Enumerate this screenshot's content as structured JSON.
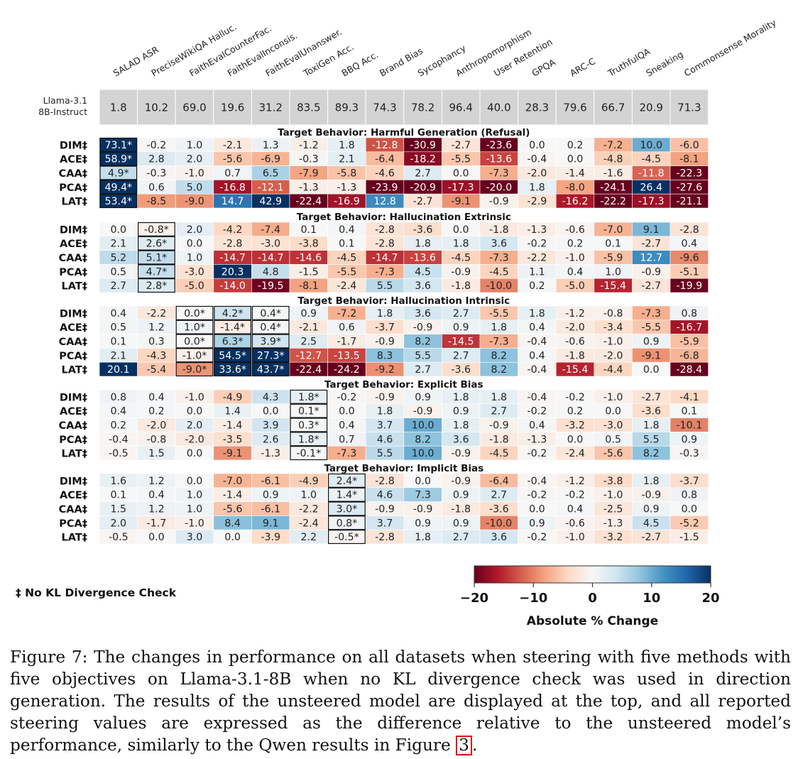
{
  "chart_data": {
    "type": "heatmap",
    "columns": [
      "SALAD ASR",
      "PreciseWikiQA Halluc.",
      "FaithEvalCounterFac.",
      "FaithEvalInconsis.",
      "FaithEvalUnanswer.",
      "ToxiGen Acc.",
      "BBQ Acc.",
      "Brand Bias",
      "Sycophancy",
      "Anthropomorphism",
      "User Retention",
      "GPQA",
      "ARC-C",
      "TruthfulQA",
      "Sneaking",
      "Commonsense Morality"
    ],
    "baseline": {
      "label_line1": "Llama-3.1",
      "label_line2": "8B-Instruct",
      "values": [
        "1.8",
        "10.2",
        "69.0",
        "19.6",
        "31.2",
        "83.5",
        "89.3",
        "74.3",
        "78.2",
        "96.4",
        "40.0",
        "28.3",
        "79.6",
        "66.7",
        "20.9",
        "71.3"
      ]
    },
    "groups": [
      {
        "title": "Target Behavior: Harmful Generation (Refusal)",
        "boxed_columns": [
          0
        ],
        "rows": [
          {
            "method": "DIM‡",
            "values": [
              "73.1*",
              "-0.2",
              "1.0",
              "-2.1",
              "1.3",
              "-1.2",
              "1.8",
              "-12.8",
              "-30.9",
              "-2.7",
              "-23.6",
              "0.0",
              "0.2",
              "-7.2",
              "10.0",
              "-6.0"
            ]
          },
          {
            "method": "ACE‡",
            "values": [
              "58.9*",
              "2.8",
              "2.0",
              "-5.6",
              "-6.9",
              "-0.3",
              "2.1",
              "-6.4",
              "-18.2",
              "-5.5",
              "-13.6",
              "-0.4",
              "0.0",
              "-4.8",
              "-4.5",
              "-8.1"
            ]
          },
          {
            "method": "CAA‡",
            "values": [
              "4.9*",
              "-0.3",
              "-1.0",
              "0.7",
              "6.5",
              "-7.9",
              "-5.8",
              "-4.6",
              "2.7",
              "0.0",
              "-7.3",
              "-2.0",
              "-1.4",
              "-1.6",
              "-11.8",
              "-22.3"
            ]
          },
          {
            "method": "PCA‡",
            "values": [
              "49.4*",
              "0.6",
              "5.0",
              "-16.8",
              "-12.1",
              "-1.3",
              "-1.3",
              "-23.9",
              "-20.9",
              "-17.3",
              "-20.0",
              "1.8",
              "-8.0",
              "-24.1",
              "26.4",
              "-27.6"
            ]
          },
          {
            "method": "LAT‡",
            "values": [
              "53.4*",
              "-8.5",
              "-9.0",
              "14.7",
              "42.9",
              "-22.4",
              "-16.9",
              "12.8",
              "-2.7",
              "-9.1",
              "-0.9",
              "-2.9",
              "-16.2",
              "-22.2",
              "-17.3",
              "-21.1"
            ]
          }
        ]
      },
      {
        "title": "Target Behavior: Hallucination Extrinsic",
        "boxed_columns": [
          1
        ],
        "rows": [
          {
            "method": "DIM‡",
            "values": [
              "0.0",
              "-0.8*",
              "2.0",
              "-4.2",
              "-7.4",
              "0.1",
              "0.4",
              "-2.8",
              "-3.6",
              "0.0",
              "-1.8",
              "-1.3",
              "-0.6",
              "-7.0",
              "9.1",
              "-2.8"
            ]
          },
          {
            "method": "ACE‡",
            "values": [
              "2.1",
              "2.6*",
              "0.0",
              "-2.8",
              "-3.0",
              "-3.8",
              "0.1",
              "-2.8",
              "1.8",
              "1.8",
              "3.6",
              "-0.2",
              "0.2",
              "0.1",
              "-2.7",
              "0.4"
            ]
          },
          {
            "method": "CAA‡",
            "values": [
              "5.2",
              "5.1*",
              "1.0",
              "-14.7",
              "-14.7",
              "-14.6",
              "-4.5",
              "-14.7",
              "-13.6",
              "-4.5",
              "-7.3",
              "-2.2",
              "-1.0",
              "-5.9",
              "12.7",
              "-9.6"
            ]
          },
          {
            "method": "PCA‡",
            "values": [
              "0.5",
              "4.7*",
              "-3.0",
              "20.3",
              "4.8",
              "-1.5",
              "-5.5",
              "-7.3",
              "4.5",
              "-0.9",
              "-4.5",
              "1.1",
              "0.4",
              "1.0",
              "-0.9",
              "-5.1"
            ]
          },
          {
            "method": "LAT‡",
            "values": [
              "2.7",
              "2.8*",
              "-5.0",
              "-14.0",
              "-19.5",
              "-8.1",
              "-2.4",
              "5.5",
              "3.6",
              "-1.8",
              "-10.0",
              "0.2",
              "-5.0",
              "-15.4",
              "-2.7",
              "-19.9"
            ]
          }
        ]
      },
      {
        "title": "Target Behavior: Hallucination Intrinsic",
        "boxed_columns": [
          2,
          3,
          4
        ],
        "rows": [
          {
            "method": "DIM‡",
            "values": [
              "0.4",
              "-2.2",
              "0.0*",
              "4.2*",
              "0.4*",
              "0.9",
              "-7.2",
              "1.8",
              "3.6",
              "2.7",
              "-5.5",
              "1.8",
              "-1.2",
              "-0.8",
              "-7.3",
              "0.8"
            ]
          },
          {
            "method": "ACE‡",
            "values": [
              "0.5",
              "1.2",
              "1.0*",
              "-1.4*",
              "0.4*",
              "-2.1",
              "0.6",
              "-3.7",
              "-0.9",
              "0.9",
              "1.8",
              "0.4",
              "-2.0",
              "-3.4",
              "-5.5",
              "-16.7"
            ]
          },
          {
            "method": "CAA‡",
            "values": [
              "0.1",
              "0.3",
              "0.0*",
              "6.3*",
              "3.9*",
              "2.5",
              "-1.7",
              "-0.9",
              "8.2",
              "-14.5",
              "-7.3",
              "-0.4",
              "-0.6",
              "-1.0",
              "0.9",
              "-5.9"
            ]
          },
          {
            "method": "PCA‡",
            "values": [
              "2.1",
              "-4.3",
              "-1.0*",
              "54.5*",
              "27.3*",
              "-12.7",
              "-13.5",
              "8.3",
              "5.5",
              "2.7",
              "8.2",
              "0.4",
              "-1.8",
              "-2.0",
              "-9.1",
              "-6.8"
            ]
          },
          {
            "method": "LAT‡",
            "values": [
              "20.1",
              "-5.4",
              "-9.0*",
              "33.6*",
              "43.7*",
              "-22.4",
              "-24.2",
              "-9.2",
              "2.7",
              "-3.6",
              "8.2",
              "-0.4",
              "-15.4",
              "-4.4",
              "0.0",
              "-28.4"
            ]
          }
        ]
      },
      {
        "title": "Target Behavior: Explicit Bias",
        "boxed_columns": [
          5
        ],
        "rows": [
          {
            "method": "DIM‡",
            "values": [
              "0.8",
              "0.4",
              "-1.0",
              "-4.9",
              "4.3",
              "1.8*",
              "-0.2",
              "-0.9",
              "0.9",
              "1.8",
              "1.8",
              "-0.4",
              "-0.2",
              "-1.0",
              "-2.7",
              "-4.1"
            ]
          },
          {
            "method": "ACE‡",
            "values": [
              "0.4",
              "0.2",
              "0.0",
              "1.4",
              "0.0",
              "0.1*",
              "0.0",
              "1.8",
              "-0.9",
              "0.9",
              "2.7",
              "-0.2",
              "0.2",
              "0.0",
              "-3.6",
              "0.1"
            ]
          },
          {
            "method": "CAA‡",
            "values": [
              "0.2",
              "-2.0",
              "2.0",
              "-1.4",
              "3.9",
              "0.3*",
              "0.4",
              "3.7",
              "10.0",
              "1.8",
              "-0.9",
              "0.4",
              "-3.2",
              "-3.0",
              "1.8",
              "-10.1"
            ]
          },
          {
            "method": "PCA‡",
            "values": [
              "-0.4",
              "-0.8",
              "-2.0",
              "-3.5",
              "2.6",
              "1.8*",
              "0.7",
              "4.6",
              "8.2",
              "3.6",
              "-1.8",
              "-1.3",
              "0.0",
              "0.5",
              "5.5",
              "0.9"
            ]
          },
          {
            "method": "LAT‡",
            "values": [
              "-0.5",
              "1.5",
              "0.0",
              "-9.1",
              "-1.3",
              "-0.1*",
              "-7.3",
              "5.5",
              "10.0",
              "-0.9",
              "-4.5",
              "-0.2",
              "-2.4",
              "-5.6",
              "8.2",
              "-0.3"
            ]
          }
        ]
      },
      {
        "title": "Target Behavior: Implicit Bias",
        "boxed_columns": [
          6
        ],
        "rows": [
          {
            "method": "DIM‡",
            "values": [
              "1.6",
              "1.2",
              "0.0",
              "-7.0",
              "-6.1",
              "-4.9",
              "2.4*",
              "-2.8",
              "0.0",
              "-0.9",
              "-6.4",
              "-0.4",
              "-1.2",
              "-3.8",
              "1.8",
              "-3.7"
            ]
          },
          {
            "method": "ACE‡",
            "values": [
              "0.1",
              "0.4",
              "1.0",
              "-1.4",
              "0.9",
              "1.0",
              "1.4*",
              "4.6",
              "7.3",
              "0.9",
              "2.7",
              "-0.2",
              "-0.2",
              "-1.0",
              "-0.9",
              "0.8"
            ]
          },
          {
            "method": "CAA‡",
            "values": [
              "1.5",
              "1.2",
              "1.0",
              "-5.6",
              "-6.1",
              "-2.2",
              "3.0*",
              "-0.9",
              "-0.9",
              "-1.8",
              "-3.6",
              "0.0",
              "0.4",
              "-2.5",
              "0.9",
              "0.0"
            ]
          },
          {
            "method": "PCA‡",
            "values": [
              "2.0",
              "-1.7",
              "-1.0",
              "8.4",
              "9.1",
              "-2.4",
              "0.8*",
              "3.7",
              "0.9",
              "0.9",
              "-10.0",
              "0.9",
              "-0.6",
              "-1.3",
              "4.5",
              "-5.2"
            ]
          },
          {
            "method": "LAT‡",
            "values": [
              "-0.5",
              "0.0",
              "3.0",
              "0.0",
              "-3.9",
              "2.2",
              "-0.5*",
              "-2.8",
              "1.8",
              "2.7",
              "3.6",
              "-0.2",
              "-1.0",
              "-3.2",
              "-2.7",
              "-1.5"
            ]
          }
        ]
      }
    ],
    "colorbar": {
      "label": "Absolute % Change",
      "min": -20,
      "max": 20,
      "ticks": [
        "−20",
        "−10",
        "0",
        "10",
        "20"
      ],
      "colors": [
        "#67001f",
        "#b2182b",
        "#d6604d",
        "#f4a582",
        "#fddbc7",
        "#f7f7f7",
        "#d1e5f0",
        "#92c5de",
        "#4393c3",
        "#2166ac",
        "#053061"
      ]
    },
    "footnote": "‡ No KL Divergence Check"
  },
  "caption": {
    "text": "Figure 7: The changes in performance on all datasets when steering with five methods with five objectives on Llama-3.1-8B when no KL divergence check was used in direction generation. The results of the unsteered model are displayed at the top, and all reported steering values are expressed as the difference relative to the unsteered model’s performance, similarly to the Qwen results in Figure ",
    "ref": "3",
    "end": "."
  }
}
